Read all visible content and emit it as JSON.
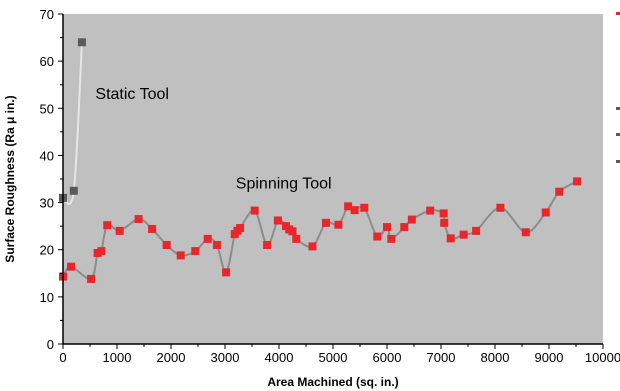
{
  "chart_data": {
    "type": "scatter",
    "title": "",
    "xlabel": "Area Machined (sq. in.)",
    "ylabel": "Surface Roughness (Ra μ in.)",
    "xlim": [
      0,
      10000
    ],
    "ylim": [
      0,
      70
    ],
    "x_ticks": [
      "0",
      "1000",
      "2000",
      "3000",
      "4000",
      "5000",
      "6000",
      "7000",
      "8000",
      "9000",
      "10000"
    ],
    "y_ticks": [
      "0",
      "10",
      "20",
      "30",
      "40",
      "50",
      "60",
      "70"
    ],
    "grid": false,
    "plot_background": "#c0c0c0",
    "line_color": "#8c8c8c",
    "annotations": [
      {
        "text": "Static Tool",
        "x": 600,
        "y": 52
      },
      {
        "text": "Spinning Tool",
        "x": 3200,
        "y": 33
      }
    ],
    "series": [
      {
        "label": "Static Tool",
        "color": "#5a5a5a",
        "line_color": "#e6e6e6",
        "points": [
          [
            0,
            31
          ],
          [
            200,
            32.5
          ],
          [
            350,
            64
          ]
        ]
      },
      {
        "label": "Spinning Tool",
        "color": "#e8262b",
        "line_color": "#8c8c8c",
        "points": [
          [
            0,
            14.3
          ],
          [
            150,
            16.4
          ],
          [
            520,
            13.8
          ],
          [
            640,
            19.3
          ],
          [
            710,
            19.7
          ],
          [
            820,
            25.2
          ],
          [
            1050,
            24
          ],
          [
            1400,
            26.5
          ],
          [
            1650,
            24.4
          ],
          [
            1920,
            21
          ],
          [
            2180,
            18.8
          ],
          [
            2450,
            19.7
          ],
          [
            2680,
            22.3
          ],
          [
            2850,
            21
          ],
          [
            3020,
            15.2
          ],
          [
            3180,
            23.3
          ],
          [
            3230,
            24
          ],
          [
            3280,
            24.6
          ],
          [
            3550,
            28.3
          ],
          [
            3780,
            21
          ],
          [
            3980,
            26.2
          ],
          [
            4130,
            25
          ],
          [
            4190,
            24.3
          ],
          [
            4250,
            23.9
          ],
          [
            4320,
            22.3
          ],
          [
            4620,
            20.7
          ],
          [
            4870,
            25.7
          ],
          [
            5100,
            25.3
          ],
          [
            5280,
            29.2
          ],
          [
            5400,
            28.4
          ],
          [
            5580,
            28.9
          ],
          [
            5820,
            22.8
          ],
          [
            6000,
            24.8
          ],
          [
            6080,
            22.3
          ],
          [
            6320,
            24.8
          ],
          [
            6460,
            26.4
          ],
          [
            6800,
            28.3
          ],
          [
            7050,
            27.7
          ],
          [
            7060,
            25.7
          ],
          [
            7180,
            22.4
          ],
          [
            7420,
            23.2
          ],
          [
            7650,
            24
          ],
          [
            8100,
            28.9
          ],
          [
            8570,
            23.7
          ],
          [
            8940,
            27.9
          ],
          [
            9190,
            32.3
          ],
          [
            9520,
            34.5
          ]
        ]
      }
    ]
  }
}
